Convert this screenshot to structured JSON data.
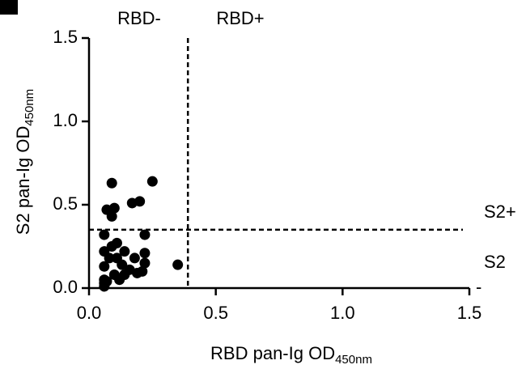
{
  "chart_data": {
    "type": "scatter",
    "xlabel": "RBD pan-Ig OD",
    "xlabel_sub": "450nm",
    "ylabel": "S2 pan-Ig OD",
    "ylabel_sub": "450nm",
    "xlim": [
      0,
      1.5
    ],
    "ylim": [
      0,
      1.5
    ],
    "xticks": [
      {
        "value": 0,
        "label": "0.0"
      },
      {
        "value": 0.5,
        "label": "0.5"
      },
      {
        "value": 1,
        "label": "1.0"
      },
      {
        "value": 1.5,
        "label": "1.5"
      }
    ],
    "yticks": [
      {
        "value": 0,
        "label": "0.0"
      },
      {
        "value": 0.5,
        "label": "0.5"
      },
      {
        "value": 1,
        "label": "1.0"
      },
      {
        "value": 1.5,
        "label": "1.5"
      }
    ],
    "thresholds": {
      "x": 0.39,
      "y": 0.35
    },
    "annotations": [
      "RBD-",
      "RBD+",
      "S2+",
      "S2",
      "-"
    ],
    "color": "#000000",
    "x": [
      0.09,
      0.25,
      0.07,
      0.1,
      0.09,
      0.17,
      0.2,
      0.22,
      0.35,
      0.06,
      0.11,
      0.14,
      0.22,
      0.18,
      0.22,
      0.21,
      0.16,
      0.13,
      0.06,
      0.06,
      0.1,
      0.08,
      0.06,
      0.06,
      0.11,
      0.14,
      0.19,
      0.06,
      0.07,
      0.12,
      0.09
    ],
    "values": [
      0.63,
      0.64,
      0.47,
      0.48,
      0.43,
      0.51,
      0.52,
      0.32,
      0.14,
      0.32,
      0.27,
      0.22,
      0.21,
      0.18,
      0.15,
      0.1,
      0.11,
      0.14,
      0.05,
      0.03,
      0.08,
      0.18,
      0.22,
      0.13,
      0.18,
      0.08,
      0.09,
      0.01,
      0.04,
      0.05,
      0.25
    ]
  }
}
